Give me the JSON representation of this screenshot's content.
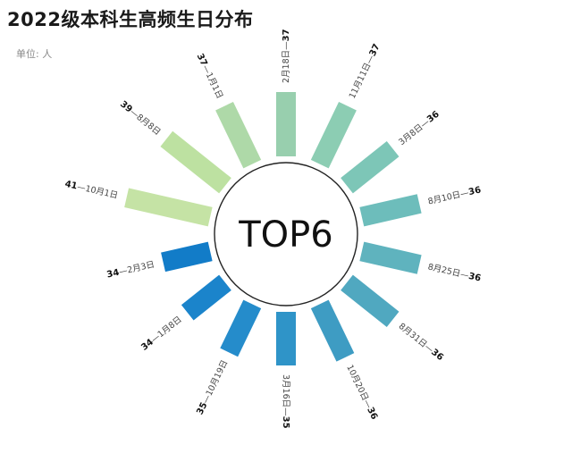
{
  "header": {
    "title": "2022级本科生高频生日分布",
    "unit": "单位: 人"
  },
  "center_label": "TOP6",
  "chart_data": {
    "type": "radial-bar",
    "title": "2022级本科生高频生日分布",
    "unit": "人",
    "categories": [
      "2月18日",
      "11月11日",
      "3月8日",
      "8月10日",
      "8月25日",
      "8月31日",
      "10月20日",
      "3月16日",
      "10月19日",
      "1月8日",
      "2月3日",
      "10月1日",
      "8月8日",
      "1月1日"
    ],
    "values": [
      37,
      37,
      36,
      36,
      36,
      36,
      36,
      35,
      35,
      34,
      34,
      41,
      39,
      37
    ],
    "colors": [
      "#98cfae",
      "#8ccdb3",
      "#7dc6b7",
      "#6dbdbb",
      "#5fb3be",
      "#50a8c0",
      "#3e9cc3",
      "#2f94c8",
      "#258ccb",
      "#1b84cb",
      "#127cc8",
      "#c5e3a5",
      "#bde1a1",
      "#aed9a8"
    ]
  }
}
